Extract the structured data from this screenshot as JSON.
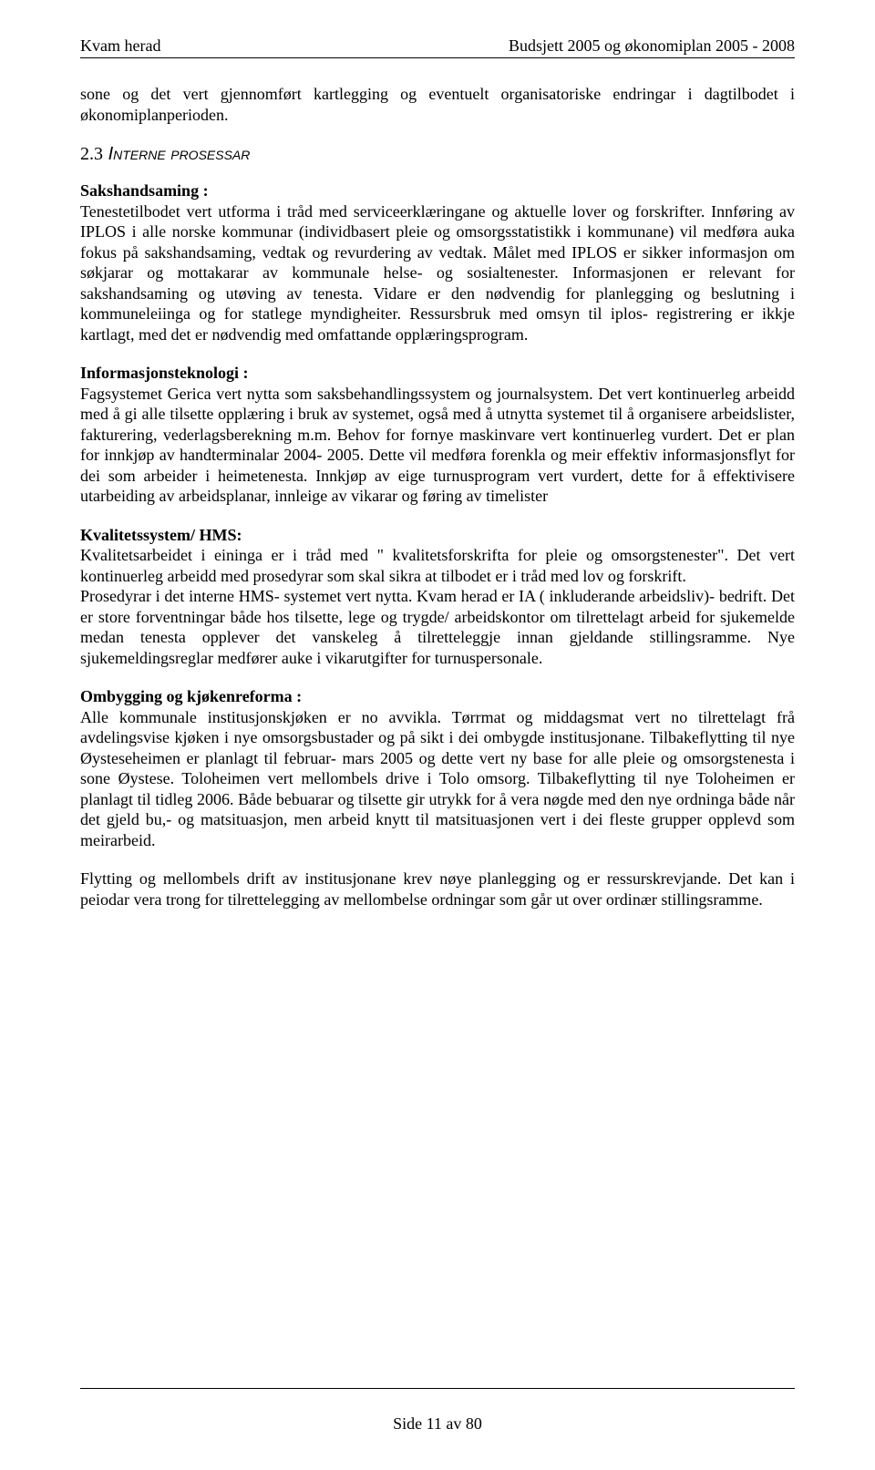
{
  "header": {
    "left": "Kvam herad",
    "right": "Budsjett 2005 og økonomiplan 2005 - 2008"
  },
  "intro_para": "sone og det vert gjennomført kartlegging og eventuelt organisatoriske endringar i dagtilbodet i økonomiplanperioden.",
  "section": {
    "number": "2.3",
    "title": "Interne prosessar"
  },
  "saks": {
    "title": "Sakshandsaming :",
    "body": " Tenestetilbodet vert utforma i tråd med serviceerklæringane og aktuelle lover og forskrifter. Innføring av IPLOS i alle norske kommunar (individbasert pleie og omsorgsstatistikk i kommunane) vil medføra auka fokus på sakshandsaming, vedtak og revurdering av vedtak. Målet med IPLOS er sikker informasjon om søkjarar og mottakarar av kommunale helse- og sosialtenester. Informasjonen er relevant for sakshandsaming og utøving av tenesta. Vidare er den nødvendig for planlegging og beslutning i kommuneleiinga og for statlege myndigheiter. Ressursbruk med omsyn til iplos- registrering er ikkje kartlagt, med det er nødvendig med omfattande opplæringsprogram."
  },
  "info": {
    "title": "Informasjonsteknologi :",
    "body": " Fagsystemet Gerica vert nytta som saksbehandlingssystem og journalsystem. Det vert kontinuerleg arbeidd med å gi alle tilsette opplæring i bruk av systemet, også med å utnytta systemet til å organisere arbeidslister, fakturering, vederlagsberekning m.m. Behov for fornye maskinvare vert kontinuerleg vurdert. Det er plan for innkjøp av handterminalar 2004- 2005. Dette vil medføra forenkla og meir effektiv informasjonsflyt for dei som arbeider i heimetenesta. Innkjøp av eige turnusprogram vert vurdert, dette for å effektivisere utarbeiding av arbeidsplanar, innleige av vikarar og føring av timelister"
  },
  "hms": {
    "title": "Kvalitetssystem/ HMS:",
    "body1": " Kvalitetsarbeidet i eininga er i tråd med \" kvalitetsforskrifta for pleie og omsorgstenester\". Det vert kontinuerleg arbeidd med  prosedyrar som skal sikra at tilbodet er i tråd med lov og forskrift.",
    "body2": "Prosedyrar i det interne HMS- systemet vert nytta. Kvam herad er IA ( inkluderande arbeidsliv)- bedrift. Det er store forventningar både hos tilsette, lege og trygde/ arbeidskontor om tilrettelagt arbeid for sjukemelde medan tenesta opplever det vanskeleg å tilretteleggje innan gjeldande stillingsramme. Nye sjukemeldingsreglar medfører auke i vikarutgifter for turnuspersonale."
  },
  "ombygg": {
    "title": "Ombygging og kjøkenreforma :",
    "body": " Alle kommunale institusjonskjøken er no avvikla. Tørrmat og middagsmat vert no tilrettelagt frå avdelingsvise kjøken i nye omsorgsbustader og på sikt i dei ombygde institusjonane. Tilbakeflytting til nye Øysteseheimen er planlagt til februar- mars 2005 og dette vert ny base for alle pleie og omsorgstenesta i sone Øystese. Toloheimen vert mellombels drive i Tolo omsorg. Tilbakeflytting til nye Toloheimen er planlagt til tidleg 2006. Både bebuarar og tilsette gir utrykk for å vera nøgde med den nye ordninga både når det gjeld bu,- og matsituasjon, men arbeid knytt til matsituasjonen vert i dei fleste grupper opplevd som  meirarbeid."
  },
  "closing": "Flytting og mellombels drift av institusjonane krev nøye planlegging og er ressurskrevjande. Det kan i peiodar vera trong for tilrettelegging av mellombelse ordningar som går ut over ordinær stillingsramme.",
  "footer": "Side 11 av 80"
}
